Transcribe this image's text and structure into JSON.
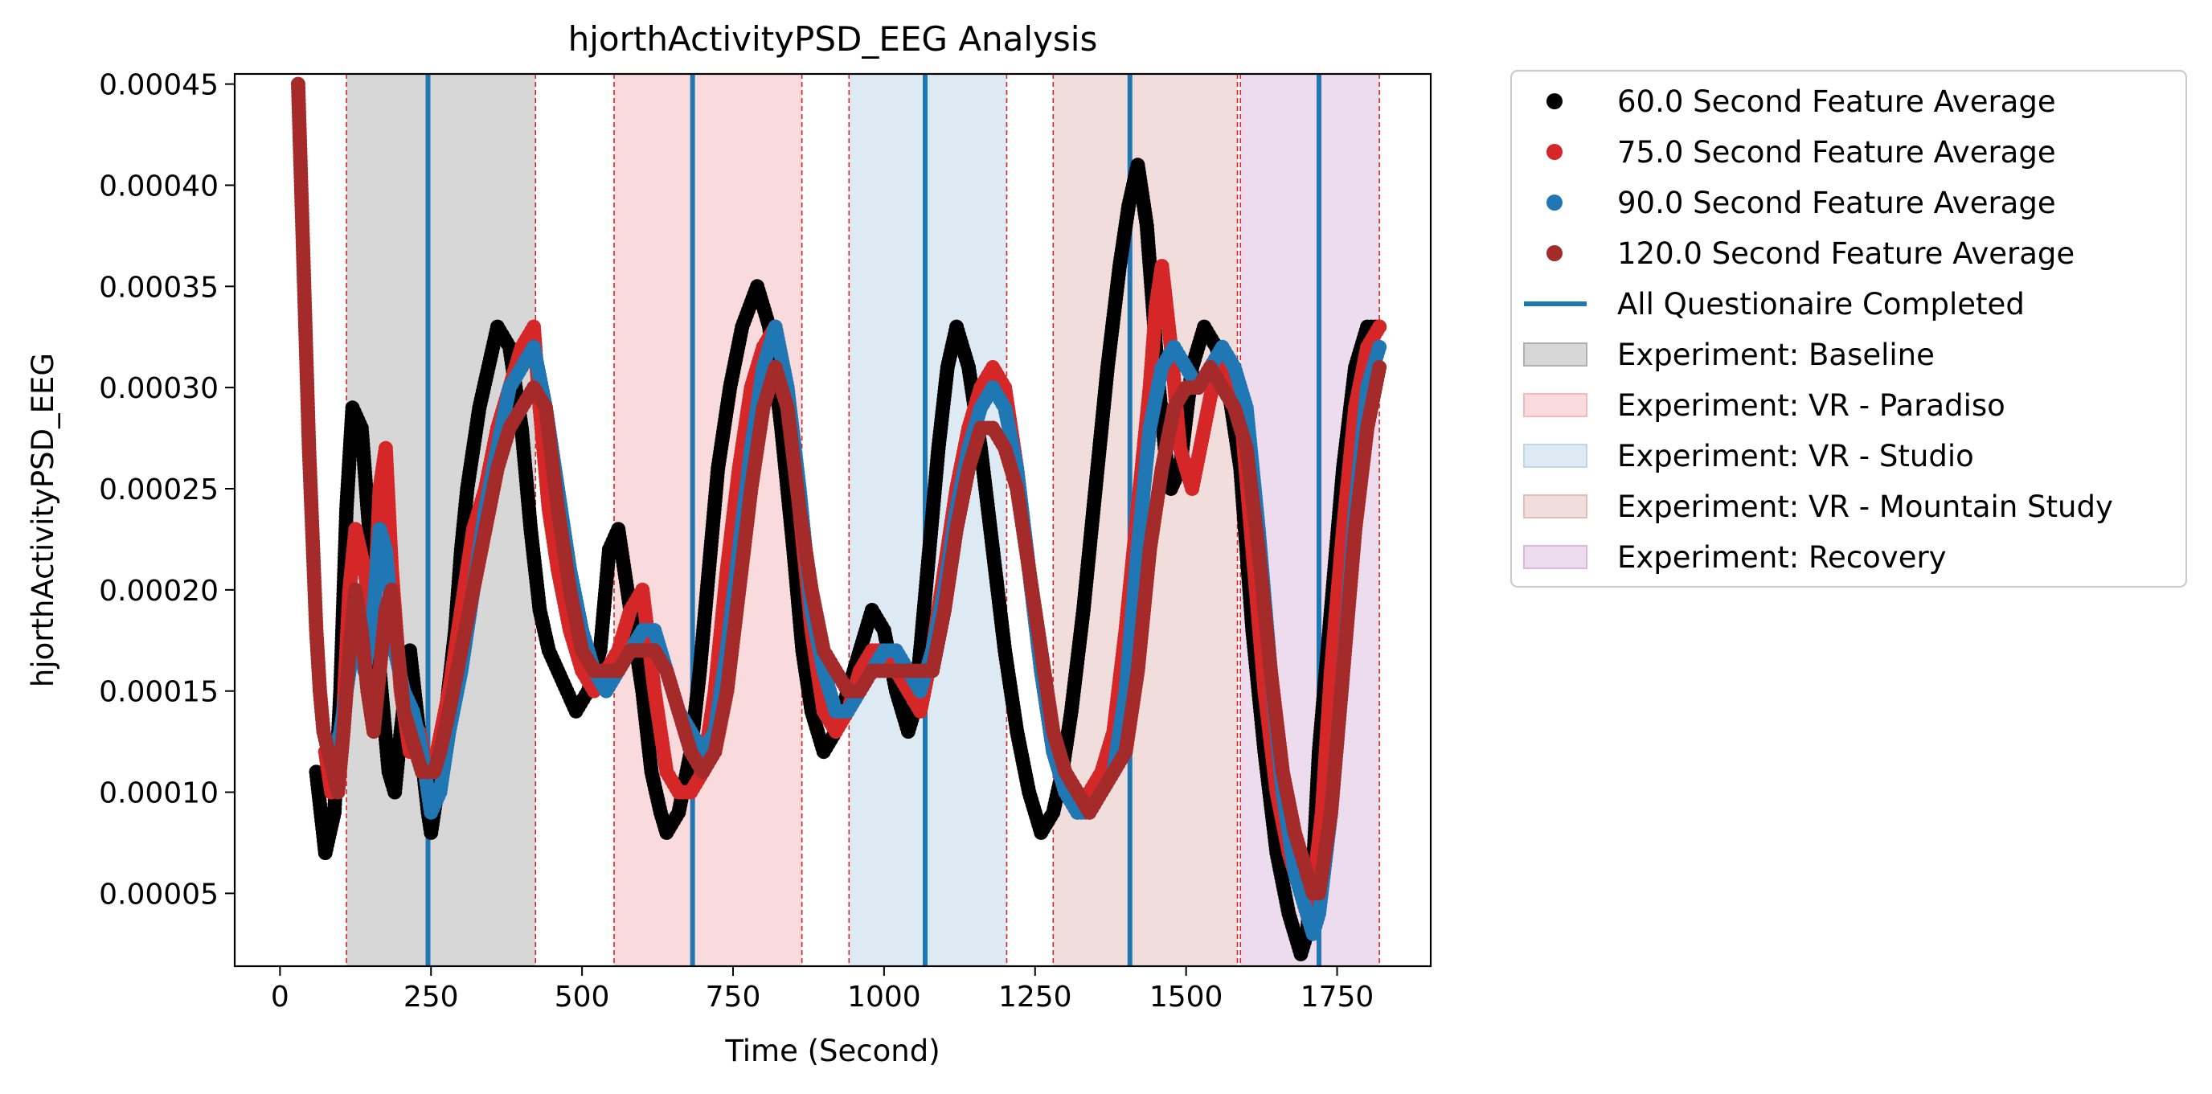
{
  "chart_data": {
    "type": "scatter",
    "title": "hjorthActivityPSD_EEG Analysis",
    "xlabel": "Time (Second)",
    "ylabel": "hjorthActivityPSD_EEG",
    "xlim": [
      -75,
      1905
    ],
    "ylim": [
      1.4e-05,
      0.000455
    ],
    "xticks": [
      0,
      250,
      500,
      750,
      1000,
      1250,
      1500,
      1750
    ],
    "xtick_labels": [
      "0",
      "250",
      "500",
      "750",
      "1000",
      "1250",
      "1500",
      "1750"
    ],
    "yticks": [
      5e-05,
      0.0001,
      0.00015,
      0.0002,
      0.00025,
      0.0003,
      0.00035,
      0.0004,
      0.00045
    ],
    "ytick_labels": [
      "0.00005",
      "0.00010",
      "0.00015",
      "0.00020",
      "0.00025",
      "0.00030",
      "0.00035",
      "0.00040",
      "0.00045"
    ],
    "grid": false,
    "legend_position": "outside-right-top",
    "series": [
      {
        "name": "60.0 Second Feature Average",
        "color": "#000000",
        "x": [
          60,
          75,
          90,
          100,
          110,
          120,
          135,
          150,
          165,
          180,
          190,
          200,
          215,
          230,
          245,
          250,
          260,
          275,
          290,
          300,
          310,
          330,
          345,
          360,
          380,
          400,
          415,
          430,
          445,
          460,
          475,
          490,
          510,
          530,
          545,
          560,
          580,
          600,
          615,
          630,
          640,
          660,
          680,
          695,
          710,
          725,
          745,
          765,
          790,
          810,
          830,
          850,
          865,
          880,
          900,
          920,
          940,
          960,
          980,
          1000,
          1020,
          1040,
          1050,
          1060,
          1075,
          1090,
          1105,
          1120,
          1140,
          1160,
          1180,
          1200,
          1220,
          1240,
          1260,
          1280,
          1295,
          1310,
          1330,
          1350,
          1370,
          1390,
          1405,
          1420,
          1435,
          1445,
          1455,
          1465,
          1475,
          1490,
          1510,
          1530,
          1550,
          1570,
          1590,
          1610,
          1630,
          1650,
          1670,
          1690,
          1700,
          1710,
          1720,
          1740,
          1760,
          1780,
          1800,
          1820
        ],
        "y": [
          0.00011,
          7e-05,
          9e-05,
          0.00015,
          0.00024,
          0.00029,
          0.00028,
          0.00022,
          0.00016,
          0.00011,
          0.0001,
          0.00013,
          0.00017,
          0.00013,
          9e-05,
          8e-05,
          0.0001,
          0.00014,
          0.00018,
          0.00022,
          0.00025,
          0.00029,
          0.00031,
          0.00033,
          0.00032,
          0.00028,
          0.00023,
          0.00019,
          0.00017,
          0.00016,
          0.00015,
          0.00014,
          0.00015,
          0.00017,
          0.00022,
          0.00023,
          0.00019,
          0.00015,
          0.00011,
          9e-05,
          8e-05,
          9e-05,
          0.00012,
          0.00016,
          0.00021,
          0.00026,
          0.0003,
          0.00033,
          0.00035,
          0.00033,
          0.00028,
          0.00022,
          0.00017,
          0.00014,
          0.00012,
          0.00013,
          0.00015,
          0.00017,
          0.00019,
          0.00018,
          0.00015,
          0.00013,
          0.00014,
          0.00017,
          0.00022,
          0.00027,
          0.00031,
          0.00033,
          0.00031,
          0.00027,
          0.00022,
          0.00017,
          0.00013,
          0.0001,
          8e-05,
          9e-05,
          0.00011,
          0.00014,
          0.00019,
          0.00025,
          0.00031,
          0.00036,
          0.00039,
          0.00041,
          0.00038,
          0.00034,
          0.0003,
          0.00027,
          0.00025,
          0.00026,
          0.00031,
          0.00033,
          0.00032,
          0.0003,
          0.00026,
          0.00018,
          0.00012,
          7e-05,
          4e-05,
          2e-05,
          3e-05,
          6e-05,
          0.00012,
          0.00019,
          0.00026,
          0.00031,
          0.00033,
          0.00033
        ]
      },
      {
        "name": "75.0 Second Feature Average",
        "color": "#d62728",
        "x": [
          75,
          85,
          95,
          105,
          115,
          125,
          140,
          155,
          165,
          175,
          185,
          200,
          215,
          230,
          245,
          260,
          280,
          300,
          320,
          340,
          360,
          380,
          400,
          420,
          430,
          445,
          460,
          480,
          500,
          520,
          540,
          560,
          580,
          600,
          620,
          640,
          660,
          680,
          700,
          720,
          740,
          760,
          780,
          800,
          820,
          840,
          860,
          880,
          900,
          920,
          940,
          960,
          980,
          1000,
          1020,
          1040,
          1060,
          1080,
          1100,
          1120,
          1140,
          1160,
          1180,
          1200,
          1220,
          1240,
          1260,
          1280,
          1300,
          1320,
          1340,
          1360,
          1380,
          1400,
          1420,
          1440,
          1450,
          1460,
          1475,
          1490,
          1510,
          1530,
          1550,
          1570,
          1590,
          1610,
          1630,
          1650,
          1670,
          1690,
          1700,
          1710,
          1725,
          1740,
          1760,
          1780,
          1800,
          1820
        ],
        "y": [
          0.00012,
          0.0001,
          0.00011,
          0.00014,
          0.0002,
          0.00023,
          0.00021,
          0.00018,
          0.00025,
          0.00027,
          0.00021,
          0.00015,
          0.00012,
          0.00013,
          0.00011,
          0.00012,
          0.00015,
          0.00019,
          0.00023,
          0.00025,
          0.00028,
          0.0003,
          0.00032,
          0.00033,
          0.00029,
          0.00024,
          0.00021,
          0.00018,
          0.00016,
          0.00015,
          0.00016,
          0.00017,
          0.00019,
          0.0002,
          0.00015,
          0.00011,
          0.0001,
          0.0001,
          0.00011,
          0.00015,
          0.00021,
          0.00026,
          0.0003,
          0.00032,
          0.00033,
          0.0003,
          0.00024,
          0.00018,
          0.00014,
          0.00013,
          0.00014,
          0.00016,
          0.00017,
          0.00017,
          0.00016,
          0.00015,
          0.00014,
          0.00017,
          0.00021,
          0.00025,
          0.00028,
          0.0003,
          0.00031,
          0.0003,
          0.00026,
          0.00021,
          0.00016,
          0.00012,
          0.0001,
          9e-05,
          0.0001,
          0.00011,
          0.00013,
          0.00018,
          0.00024,
          0.0003,
          0.00034,
          0.00036,
          0.00032,
          0.00027,
          0.00025,
          0.00028,
          0.00031,
          0.00031,
          0.00029,
          0.00022,
          0.00015,
          0.0001,
          7e-05,
          5e-05,
          4e-05,
          5e-05,
          9e-05,
          0.00016,
          0.00023,
          0.00029,
          0.00032,
          0.00033
        ]
      },
      {
        "name": "90.0 Second Feature Average",
        "color": "#1f77b4",
        "x": [
          90,
          100,
          110,
          125,
          140,
          155,
          165,
          175,
          190,
          205,
          220,
          235,
          250,
          265,
          280,
          300,
          320,
          340,
          360,
          380,
          400,
          420,
          440,
          460,
          480,
          500,
          520,
          540,
          560,
          580,
          600,
          620,
          640,
          660,
          680,
          700,
          720,
          740,
          760,
          780,
          800,
          820,
          840,
          860,
          880,
          900,
          920,
          940,
          960,
          980,
          1000,
          1020,
          1040,
          1060,
          1080,
          1100,
          1120,
          1140,
          1160,
          1180,
          1200,
          1220,
          1240,
          1260,
          1280,
          1300,
          1320,
          1340,
          1360,
          1380,
          1400,
          1420,
          1440,
          1460,
          1480,
          1500,
          1520,
          1540,
          1560,
          1580,
          1600,
          1620,
          1640,
          1660,
          1680,
          1700,
          1710,
          1720,
          1740,
          1760,
          1780,
          1800,
          1820
        ],
        "y": [
          0.00012,
          0.00013,
          0.00015,
          0.00018,
          0.00016,
          0.00019,
          0.00023,
          0.00022,
          0.00017,
          0.00015,
          0.00014,
          0.00012,
          9e-05,
          0.0001,
          0.00013,
          0.00016,
          0.0002,
          0.00024,
          0.00027,
          0.0003,
          0.00031,
          0.00032,
          0.00029,
          0.00025,
          0.00021,
          0.00018,
          0.00016,
          0.00015,
          0.00016,
          0.00017,
          0.00018,
          0.00018,
          0.00016,
          0.00014,
          0.00013,
          0.00012,
          0.00013,
          0.00017,
          0.00022,
          0.00027,
          0.00031,
          0.00033,
          0.0003,
          0.00025,
          0.00019,
          0.00016,
          0.00014,
          0.00014,
          0.00015,
          0.00016,
          0.00017,
          0.00017,
          0.00016,
          0.00015,
          0.00017,
          0.0002,
          0.00024,
          0.00027,
          0.00029,
          0.0003,
          0.00029,
          0.00026,
          0.00021,
          0.00016,
          0.00012,
          0.0001,
          9e-05,
          9e-05,
          0.0001,
          0.00011,
          0.00015,
          0.00022,
          0.00028,
          0.00031,
          0.00032,
          0.00031,
          0.0003,
          0.00031,
          0.00032,
          0.00031,
          0.00029,
          0.00023,
          0.00016,
          0.0001,
          6e-05,
          4e-05,
          3e-05,
          4e-05,
          9e-05,
          0.00016,
          0.00024,
          0.0003,
          0.00032
        ]
      },
      {
        "name": "120.0 Second Feature Average",
        "color": "#a52a2a",
        "x": [
          30,
          33,
          36,
          39,
          42,
          45,
          48,
          52,
          56,
          60,
          66,
          72,
          80,
          88,
          96,
          105,
          115,
          125,
          135,
          145,
          155,
          165,
          175,
          185,
          195,
          205,
          215,
          225,
          235,
          245,
          255,
          265,
          280,
          300,
          320,
          340,
          360,
          380,
          400,
          420,
          440,
          460,
          480,
          500,
          520,
          540,
          560,
          580,
          600,
          620,
          640,
          660,
          680,
          700,
          720,
          740,
          760,
          780,
          800,
          820,
          840,
          860,
          880,
          900,
          920,
          940,
          960,
          980,
          1000,
          1020,
          1040,
          1060,
          1080,
          1100,
          1120,
          1140,
          1160,
          1180,
          1200,
          1220,
          1240,
          1260,
          1280,
          1300,
          1320,
          1340,
          1360,
          1380,
          1400,
          1420,
          1440,
          1460,
          1480,
          1500,
          1520,
          1540,
          1560,
          1580,
          1600,
          1620,
          1640,
          1660,
          1680,
          1700,
          1710,
          1720,
          1740,
          1760,
          1780,
          1800,
          1820
        ],
        "y": [
          0.00045,
          0.00042,
          0.00039,
          0.00036,
          0.00033,
          0.0003,
          0.00027,
          0.00024,
          0.00021,
          0.00018,
          0.00015,
          0.00013,
          0.00012,
          0.00011,
          0.0001,
          0.00013,
          0.00017,
          0.0002,
          0.00018,
          0.00015,
          0.00013,
          0.00016,
          0.00019,
          0.0002,
          0.00017,
          0.00014,
          0.00013,
          0.00012,
          0.00011,
          0.00011,
          0.00011,
          0.00012,
          0.00014,
          0.00017,
          0.0002,
          0.00023,
          0.00026,
          0.00028,
          0.00029,
          0.0003,
          0.00029,
          0.00024,
          0.0002,
          0.00017,
          0.00016,
          0.00016,
          0.00016,
          0.00017,
          0.00017,
          0.00017,
          0.00016,
          0.00014,
          0.00012,
          0.00011,
          0.00012,
          0.00015,
          0.0002,
          0.00025,
          0.00029,
          0.00031,
          0.00029,
          0.00024,
          0.0002,
          0.00017,
          0.00016,
          0.00015,
          0.00015,
          0.00016,
          0.00016,
          0.00016,
          0.00016,
          0.00016,
          0.00016,
          0.00019,
          0.00023,
          0.00026,
          0.00028,
          0.00028,
          0.00027,
          0.00025,
          0.00021,
          0.00017,
          0.00013,
          0.00011,
          0.0001,
          9e-05,
          0.0001,
          0.00011,
          0.00012,
          0.00016,
          0.00022,
          0.00026,
          0.00029,
          0.0003,
          0.0003,
          0.00031,
          0.0003,
          0.00029,
          0.00027,
          0.00022,
          0.00016,
          0.00011,
          8e-05,
          6e-05,
          5e-05,
          5e-05,
          9e-05,
          0.00016,
          0.00023,
          0.00028,
          0.00031
        ]
      }
    ],
    "vlines": {
      "name": "All Questionaire Completed",
      "color": "#1f77b4",
      "x": [
        245,
        683,
        1068,
        1407,
        1720
      ]
    },
    "regions": [
      {
        "name": "Experiment: Baseline",
        "x0": 110,
        "x1": 423,
        "color": "#b0b0b0"
      },
      {
        "name": "Experiment: VR - Paradiso",
        "x0": 553,
        "x1": 864,
        "color": "#f4b8bc"
      },
      {
        "name": "Experiment: VR - Studio",
        "x0": 942,
        "x1": 1203,
        "color": "#bcd6ea"
      },
      {
        "name": "Experiment: VR - Mountain Study",
        "x0": 1280,
        "x1": 1585,
        "color": "#e4bdb9"
      },
      {
        "name": "Experiment: Recovery",
        "x0": 1590,
        "x1": 1820,
        "color": "#dbb7de"
      }
    ],
    "boundary_lines": {
      "color": "#d62728",
      "x": [
        110,
        423,
        553,
        864,
        942,
        1203,
        1280,
        1585,
        1590,
        1820
      ]
    }
  }
}
